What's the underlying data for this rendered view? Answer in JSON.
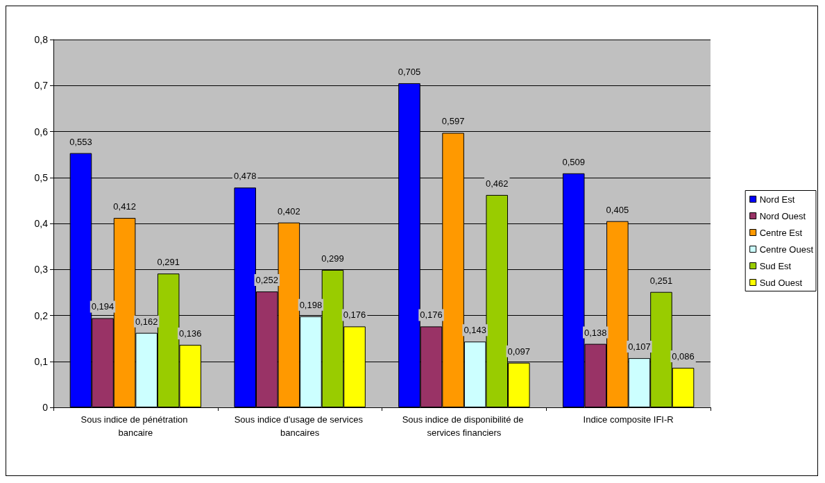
{
  "chart_data": {
    "type": "bar",
    "categories": [
      "Sous indice de pénétration bancaire",
      "Sous indice d'usage de services bancaires",
      "Sous indice de disponibilité de services financiers",
      "Indice composite IFI-R"
    ],
    "series": [
      {
        "name": "Nord Est",
        "color": "#0000ff",
        "values": [
          0.553,
          0.478,
          0.705,
          0.509
        ],
        "value_labels": [
          "0,553",
          "0,478",
          "0,705",
          "0,509"
        ]
      },
      {
        "name": "Nord Ouest",
        "color": "#993366",
        "values": [
          0.194,
          0.252,
          0.176,
          0.138
        ],
        "value_labels": [
          "0,194",
          "0,252",
          "0,176",
          "0,138"
        ]
      },
      {
        "name": "Centre Est",
        "color": "#ff9900",
        "values": [
          0.412,
          0.402,
          0.597,
          0.405
        ],
        "value_labels": [
          "0,412",
          "0,402",
          "0,597",
          "0,405"
        ]
      },
      {
        "name": "Centre Ouest",
        "color": "#ccffff",
        "values": [
          0.162,
          0.198,
          0.143,
          0.107
        ],
        "value_labels": [
          "0,162",
          "0,198",
          "0,143",
          "0,107"
        ]
      },
      {
        "name": "Sud Est",
        "color": "#99cc00",
        "values": [
          0.291,
          0.299,
          0.462,
          0.251
        ],
        "value_labels": [
          "0,291",
          "0,299",
          "0,462",
          "0,251"
        ]
      },
      {
        "name": "Sud Ouest",
        "color": "#ffff00",
        "values": [
          0.136,
          0.176,
          0.097,
          0.086
        ],
        "value_labels": [
          "0,136",
          "0,176",
          "0,097",
          "0,086"
        ]
      }
    ],
    "ylim": [
      0,
      0.8
    ],
    "yticks": [
      0,
      {
        "value": 0.1,
        "label": "0,1"
      },
      {
        "value": 0.2,
        "label": "0,2"
      },
      {
        "value": 0.3,
        "label": "0,3"
      },
      {
        "value": 0.4,
        "label": "0,4"
      },
      {
        "value": 0.5,
        "label": "0,5"
      },
      {
        "value": 0.6,
        "label": "0,6"
      },
      {
        "value": 0.7,
        "label": "0,7"
      },
      {
        "value": 0.8,
        "label": "0,8"
      }
    ],
    "grid": "y",
    "legend": "right"
  }
}
